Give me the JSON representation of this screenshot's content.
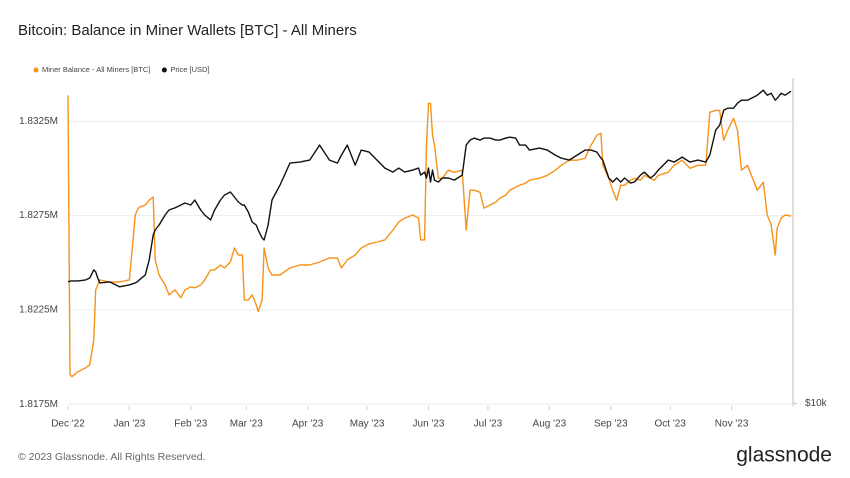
{
  "chart_data": {
    "type": "line",
    "title": "Bitcoin: Balance in Miner Wallets [BTC] - All Miners",
    "footer": "© 2023 Glassnode. All Rights Reserved.",
    "brand": "glassnode",
    "x": [
      0,
      1,
      2,
      5,
      9,
      11,
      13,
      14,
      15,
      16,
      21,
      26,
      31,
      34,
      35,
      36,
      39,
      41,
      43,
      44,
      46,
      49,
      51,
      54,
      57,
      59,
      62,
      64,
      67,
      69,
      72,
      74,
      77,
      79,
      82,
      84,
      86,
      88,
      89,
      91,
      93,
      95,
      96,
      98,
      99,
      101,
      103,
      107,
      112,
      117,
      122,
      127,
      132,
      136,
      138,
      141,
      145,
      148,
      152,
      156,
      160,
      164,
      167,
      170,
      174,
      177,
      178,
      180,
      181,
      182,
      183,
      184,
      185,
      187,
      189,
      192,
      195,
      199,
      201,
      203,
      205,
      208,
      210,
      213,
      216,
      218,
      221,
      223,
      226,
      228,
      231,
      233,
      238,
      242,
      246,
      249,
      253,
      257,
      261,
      264,
      267,
      269,
      270,
      273,
      275,
      277,
      279,
      281,
      284,
      286,
      289,
      291,
      294,
      296,
      298,
      303,
      306,
      310,
      314,
      318,
      322,
      324,
      327,
      329,
      331,
      333,
      336,
      338,
      340,
      343,
      345,
      348,
      351,
      353,
      355,
      357,
      358,
      360,
      362,
      365
    ],
    "xlim": [
      0,
      366
    ],
    "xticks": [
      {
        "value": 0,
        "label": "Dec '22"
      },
      {
        "value": 31,
        "label": "Jan '23"
      },
      {
        "value": 62,
        "label": "Feb '23"
      },
      {
        "value": 90,
        "label": "Mar '23"
      },
      {
        "value": 121,
        "label": "Apr '23"
      },
      {
        "value": 151,
        "label": "May '23"
      },
      {
        "value": 182,
        "label": "Jun '23"
      },
      {
        "value": 212,
        "label": "Jul '23"
      },
      {
        "value": 243,
        "label": "Aug '23"
      },
      {
        "value": 274,
        "label": "Sep '23"
      },
      {
        "value": 304,
        "label": "Oct '23"
      },
      {
        "value": 335,
        "label": "Nov '23"
      }
    ],
    "ylim": [
      1817400,
      1834800
    ],
    "yticks": [
      {
        "value": 1817500,
        "label": "1.8175M"
      },
      {
        "value": 1822500,
        "label": "1.8225M"
      },
      {
        "value": 1827500,
        "label": "1.8275M"
      },
      {
        "value": 1832500,
        "label": "1.8325M"
      }
    ],
    "y2lim": [
      9900,
      39100
    ],
    "y2ticks": [
      {
        "value": 10000,
        "label": "$10k"
      }
    ],
    "y2log": true,
    "grid": true,
    "legend": "top-left",
    "series": [
      {
        "name": "Miner Balance - All Miners [BTC]",
        "color": "#f7931a",
        "values": [
          1833880,
          1819060,
          1818960,
          1819220,
          1819430,
          1819590,
          1820910,
          1823560,
          1823820,
          1824090,
          1823980,
          1823980,
          1824090,
          1827530,
          1827790,
          1827950,
          1828060,
          1828320,
          1828480,
          1825150,
          1824350,
          1823820,
          1823300,
          1823560,
          1823140,
          1823560,
          1823720,
          1823670,
          1823820,
          1824090,
          1824620,
          1824620,
          1824880,
          1824720,
          1825040,
          1825780,
          1825410,
          1825410,
          1823030,
          1823030,
          1823300,
          1822770,
          1822400,
          1823030,
          1825780,
          1824720,
          1824350,
          1824350,
          1824720,
          1824880,
          1824880,
          1825040,
          1825250,
          1825250,
          1824720,
          1825150,
          1825410,
          1825780,
          1826000,
          1826100,
          1826210,
          1826730,
          1827160,
          1827370,
          1827530,
          1827370,
          1826210,
          1826210,
          1831230,
          1833450,
          1833450,
          1831760,
          1831230,
          1829480,
          1829480,
          1829910,
          1829800,
          1829910,
          1826730,
          1828850,
          1828850,
          1828740,
          1827900,
          1828060,
          1828220,
          1828430,
          1828590,
          1828850,
          1829010,
          1829110,
          1829220,
          1829380,
          1829480,
          1829640,
          1829910,
          1830170,
          1830440,
          1830440,
          1830540,
          1831230,
          1831760,
          1831870,
          1830170,
          1829480,
          1828850,
          1828320,
          1829110,
          1829110,
          1829380,
          1829480,
          1829380,
          1829640,
          1829480,
          1829380,
          1829640,
          1829800,
          1830170,
          1830440,
          1830010,
          1830170,
          1830170,
          1832980,
          1833080,
          1833080,
          1831490,
          1832020,
          1832660,
          1832020,
          1829910,
          1830170,
          1829640,
          1828850,
          1829270,
          1827530,
          1827000,
          1825410,
          1826840,
          1827370,
          1827530,
          1827480
        ]
      },
      {
        "name": "Price [USD]",
        "color": "#111111",
        "axis": "y2",
        "values": [
          16650,
          16700,
          16720,
          16720,
          16790,
          16930,
          17510,
          17360,
          16930,
          16580,
          16650,
          16310,
          16440,
          16580,
          16650,
          16790,
          17140,
          18250,
          20260,
          20690,
          21130,
          22030,
          22500,
          22690,
          22970,
          23170,
          22970,
          23460,
          22500,
          22030,
          21580,
          22500,
          23460,
          23950,
          24260,
          23750,
          23260,
          22970,
          22970,
          22310,
          21390,
          21130,
          20690,
          20010,
          19840,
          21130,
          23460,
          24970,
          27380,
          27490,
          27720,
          29520,
          27720,
          27380,
          28310,
          29520,
          27150,
          28910,
          28670,
          27720,
          26810,
          26370,
          26810,
          26370,
          26590,
          26810,
          26040,
          26370,
          25720,
          26810,
          25290,
          26590,
          25500,
          25290,
          25720,
          25720,
          25500,
          26040,
          29520,
          30140,
          30400,
          30140,
          30400,
          30400,
          30140,
          30140,
          30400,
          30520,
          30400,
          29520,
          29520,
          28910,
          29150,
          28910,
          28310,
          27960,
          27720,
          28310,
          28910,
          28910,
          28670,
          27960,
          27720,
          25720,
          25290,
          25720,
          25290,
          25720,
          25180,
          25290,
          26040,
          26370,
          25720,
          26040,
          26590,
          27720,
          27490,
          28070,
          27490,
          27720,
          27490,
          28310,
          31430,
          32090,
          34170,
          34450,
          34450,
          35180,
          35630,
          35630,
          35930,
          36380,
          37150,
          36380,
          36680,
          35630,
          35930,
          36680,
          36380,
          37000
        ]
      }
    ]
  }
}
